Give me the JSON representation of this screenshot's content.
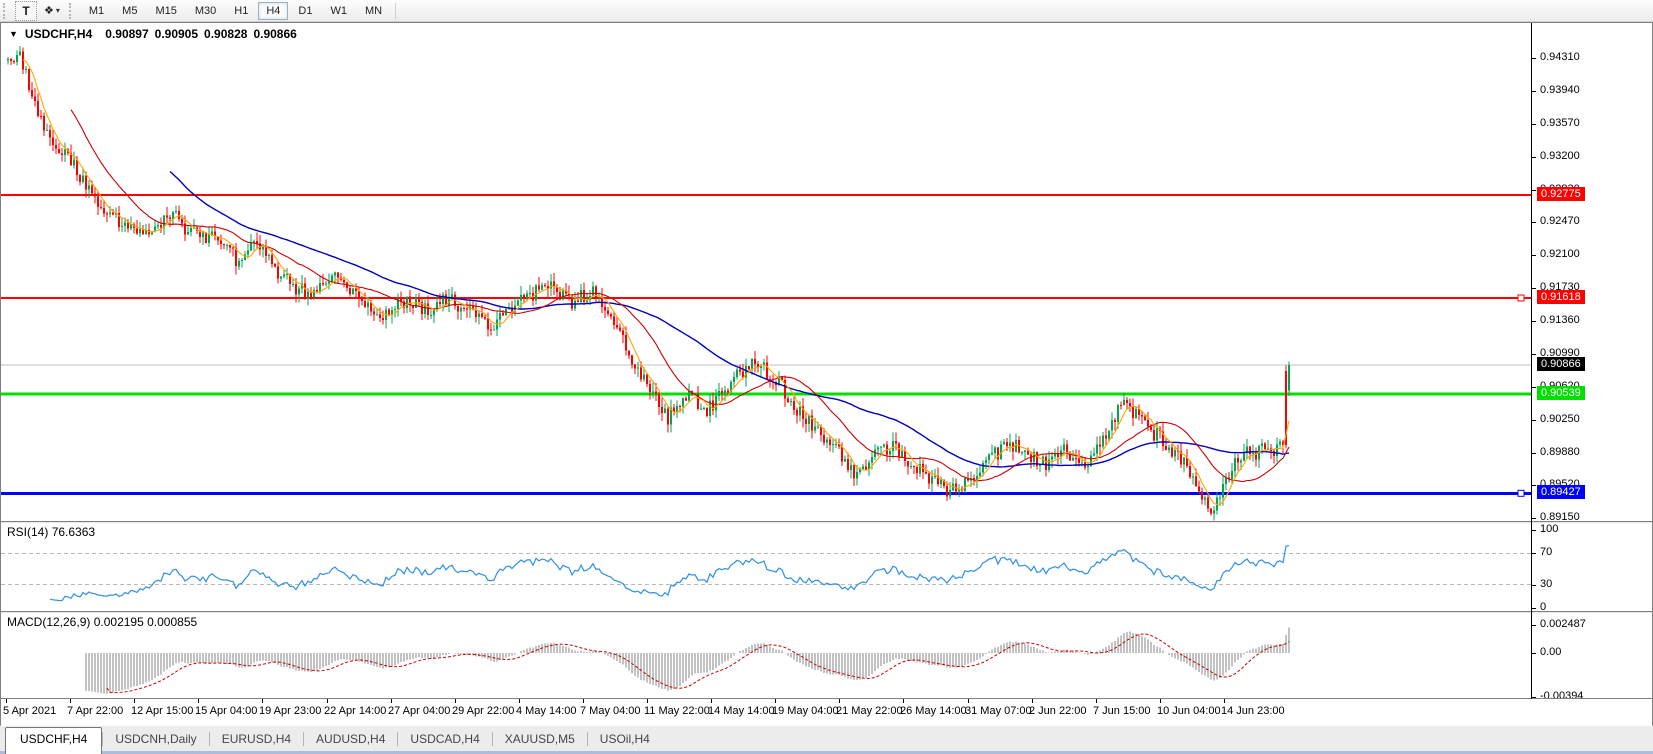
{
  "icons": {
    "dropdown_caret": "▼",
    "toolbar_caret": "▾",
    "arrange_glyph": "❖"
  },
  "toolbar": {
    "text_tool_label": "T",
    "timeframes": [
      "M1",
      "M5",
      "M15",
      "M30",
      "H1",
      "H4",
      "D1",
      "W1",
      "MN"
    ],
    "active_timeframe": "H4"
  },
  "chart": {
    "title": "USDCHF,H4",
    "ohlc": {
      "open": "0.90897",
      "high": "0.90905",
      "low": "0.90828",
      "close": "0.90866"
    },
    "price_axis_ticks": [
      "0.94310",
      "0.93940",
      "0.93570",
      "0.93200",
      "0.92830",
      "0.92470",
      "0.92100",
      "0.91730",
      "0.91360",
      "0.90990",
      "0.90620",
      "0.90250",
      "0.89880",
      "0.89520",
      "0.89150"
    ],
    "levels": [
      {
        "label": "0.92775",
        "price": 0.92775,
        "color": "#FF0000",
        "width": 2,
        "marker": false
      },
      {
        "label": "0.91618",
        "price": 0.91618,
        "color": "#FF0000",
        "width": 2,
        "marker": true
      },
      {
        "label": "0.90539",
        "price": 0.90539,
        "color": "#00DF00",
        "width": 3,
        "marker": false
      },
      {
        "label": "0.89427",
        "price": 0.89427,
        "color": "#0000FF",
        "width": 3,
        "marker": true
      }
    ],
    "current_price": {
      "label": "0.90866",
      "price": 0.90866,
      "line_color": "#C0C0C0",
      "label_bg": "#000000"
    },
    "colors": {
      "bull": "#00A650",
      "bear": "#FF0000",
      "ma_fast": "#FFA500",
      "ma_mid": "#CC0000",
      "ma_slow": "#0000BB"
    }
  },
  "rsi": {
    "name": "RSI(14)",
    "value": "76.6363",
    "period": 14,
    "axis_labels": [
      "100",
      "70",
      "30",
      "0"
    ],
    "axis_values": [
      100,
      70,
      30,
      0
    ],
    "levels": [
      70,
      30
    ],
    "color": "#2E8FE8"
  },
  "macd": {
    "name": "MACD(12,26,9)",
    "value_main": "0.002195",
    "value_signal": "0.000855",
    "axis_labels": [
      "0.002487",
      "0.00",
      "-0.00394"
    ],
    "axis_values": [
      0.002487,
      0,
      -0.00394
    ],
    "histogram_color": "#848484",
    "signal_color": "#CC0000"
  },
  "time_axis": [
    "5 Apr 2021",
    "7 Apr 22:00",
    "12 Apr 15:00",
    "15 Apr 04:00",
    "19 Apr 23:00",
    "22 Apr 14:00",
    "27 Apr 04:00",
    "29 Apr 22:00",
    "4 May 14:00",
    "7 May 04:00",
    "11 May 22:00",
    "14 May 14:00",
    "19 May 04:00",
    "21 May 22:00",
    "26 May 14:00",
    "31 May 07:00",
    "2 Jun 22:00",
    "7 Jun 15:00",
    "10 Jun 04:00",
    "14 Jun 23:00"
  ],
  "tabs": [
    {
      "label": "USDCHF,H4",
      "active": true
    },
    {
      "label": "USDCNH,Daily",
      "active": false
    },
    {
      "label": "EURUSD,H4",
      "active": false
    },
    {
      "label": "AUDUSD,H4",
      "active": false
    },
    {
      "label": "USDCAD,H4",
      "active": false
    },
    {
      "label": "XAUUSD,M5",
      "active": false
    },
    {
      "label": "USOil,H4",
      "active": false
    }
  ],
  "chart_data": {
    "type": "candlestick",
    "symbol": "USDCHF",
    "timeframe": "H4",
    "title": "USDCHF,H4 0.90897 0.90905 0.90828 0.90866",
    "ohlc_current": {
      "open": 0.90897,
      "high": 0.90905,
      "low": 0.90828,
      "close": 0.90866
    },
    "y_axis": {
      "ticks": [
        0.9431,
        0.9394,
        0.9357,
        0.932,
        0.9283,
        0.9247,
        0.921,
        0.9173,
        0.9136,
        0.9099,
        0.9062,
        0.9025,
        0.8988,
        0.8952,
        0.8915
      ],
      "range": [
        0.8913,
        0.947
      ]
    },
    "x_axis": {
      "labels": [
        "5 Apr 2021",
        "7 Apr 22:00",
        "12 Apr 15:00",
        "15 Apr 04:00",
        "19 Apr 23:00",
        "22 Apr 14:00",
        "27 Apr 04:00",
        "29 Apr 22:00",
        "4 May 14:00",
        "7 May 04:00",
        "11 May 22:00",
        "14 May 14:00",
        "19 May 04:00",
        "21 May 22:00",
        "26 May 14:00",
        "31 May 07:00",
        "2 Jun 22:00",
        "7 Jun 15:00",
        "10 Jun 04:00",
        "14 Jun 23:00"
      ]
    },
    "horizontal_levels": [
      {
        "price": 0.92775,
        "color": "red"
      },
      {
        "price": 0.91618,
        "color": "red"
      },
      {
        "price": 0.90539,
        "color": "green"
      },
      {
        "price": 0.89427,
        "color": "blue"
      }
    ],
    "indicators": [
      {
        "name": "RSI",
        "params": [
          14
        ],
        "current": 76.6363,
        "levels": [
          70,
          30
        ],
        "range": [
          0,
          100
        ]
      },
      {
        "name": "MACD",
        "params": [
          12,
          26,
          9
        ],
        "current_main": 0.002195,
        "current_signal": 0.000855,
        "axis_ticks": [
          0.002487,
          0,
          -0.00394
        ]
      },
      {
        "name": "MA fast (orange)"
      },
      {
        "name": "MA medium (red)"
      },
      {
        "name": "MA slow (blue)"
      }
    ],
    "legend_position": "none",
    "grid": "off",
    "price_path": [
      [
        0.0,
        0.9428
      ],
      [
        0.008,
        0.9436
      ],
      [
        0.03,
        0.9345
      ],
      [
        0.05,
        0.9315
      ],
      [
        0.075,
        0.9258
      ],
      [
        0.09,
        0.9243
      ],
      [
        0.11,
        0.9232
      ],
      [
        0.128,
        0.9256
      ],
      [
        0.148,
        0.9228
      ],
      [
        0.163,
        0.9232
      ],
      [
        0.178,
        0.9206
      ],
      [
        0.196,
        0.9224
      ],
      [
        0.215,
        0.9183
      ],
      [
        0.235,
        0.9164
      ],
      [
        0.255,
        0.9183
      ],
      [
        0.275,
        0.916
      ],
      [
        0.293,
        0.9143
      ],
      [
        0.31,
        0.9158
      ],
      [
        0.33,
        0.915
      ],
      [
        0.345,
        0.9163
      ],
      [
        0.362,
        0.9143
      ],
      [
        0.376,
        0.913
      ],
      [
        0.392,
        0.9152
      ],
      [
        0.408,
        0.9164
      ],
      [
        0.422,
        0.9173
      ],
      [
        0.44,
        0.9158
      ],
      [
        0.455,
        0.9168
      ],
      [
        0.47,
        0.915
      ],
      [
        0.486,
        0.9098
      ],
      [
        0.5,
        0.9058
      ],
      [
        0.515,
        0.9028
      ],
      [
        0.53,
        0.9055
      ],
      [
        0.545,
        0.9036
      ],
      [
        0.562,
        0.9062
      ],
      [
        0.58,
        0.909
      ],
      [
        0.598,
        0.9074
      ],
      [
        0.615,
        0.904
      ],
      [
        0.63,
        0.9016
      ],
      [
        0.645,
        0.8998
      ],
      [
        0.66,
        0.8963
      ],
      [
        0.675,
        0.8986
      ],
      [
        0.69,
        0.8996
      ],
      [
        0.705,
        0.8976
      ],
      [
        0.72,
        0.8958
      ],
      [
        0.735,
        0.8944
      ],
      [
        0.75,
        0.8956
      ],
      [
        0.765,
        0.8976
      ],
      [
        0.78,
        0.9002
      ],
      [
        0.795,
        0.8986
      ],
      [
        0.81,
        0.8976
      ],
      [
        0.825,
        0.899
      ],
      [
        0.84,
        0.8976
      ],
      [
        0.855,
        0.9
      ],
      [
        0.868,
        0.9042
      ],
      [
        0.88,
        0.903
      ],
      [
        0.895,
        0.901
      ],
      [
        0.908,
        0.899
      ],
      [
        0.92,
        0.8972
      ],
      [
        0.93,
        0.894
      ],
      [
        0.94,
        0.8924
      ],
      [
        0.95,
        0.8956
      ],
      [
        0.96,
        0.8984
      ],
      [
        0.972,
        0.8988
      ],
      [
        0.985,
        0.8992
      ],
      [
        0.993,
        0.8996
      ],
      [
        0.997,
        0.9078
      ],
      [
        1.0,
        0.9087
      ]
    ]
  }
}
